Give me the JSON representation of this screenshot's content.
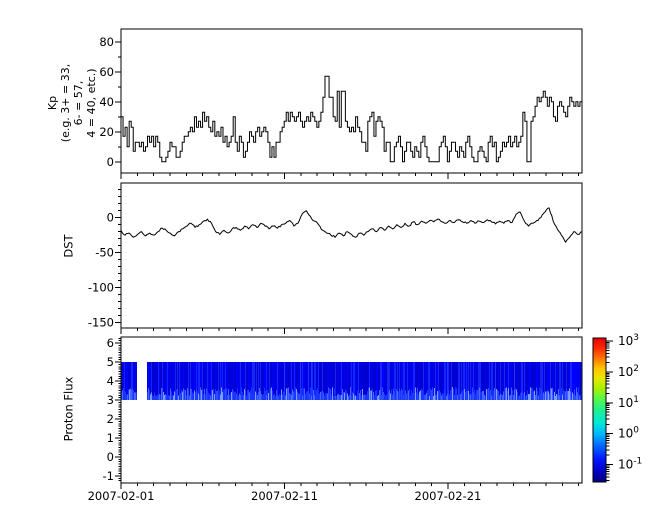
{
  "figure": {
    "background": "#ffffff",
    "frame_color": "#000000",
    "text_color": "#000000"
  },
  "x_axis": {
    "xlim_days": [
      0,
      28.2
    ],
    "start_date": "2007-02-01",
    "major_tick_days": [
      0,
      10,
      20
    ],
    "tick_labels": [
      "2007-02-01",
      "2007-02-11",
      "2007-02-21"
    ],
    "minor_tick_interval_days": 1
  },
  "chart_data": [
    {
      "type": "line",
      "mode": "steps",
      "name": "Kp",
      "ylabel_lines": [
        "Kp",
        "(e.g. 3+ = 33,",
        "6- = 57,",
        "4 = 40, etc.)"
      ],
      "yticks": [
        0,
        20,
        40,
        60,
        80
      ],
      "ytick_labels": [
        "0",
        "20",
        "40",
        "60",
        "80"
      ],
      "ylim": [
        -7.5,
        88.5
      ],
      "minor_tick_step": 10,
      "sample_hours": 3,
      "line_color": "#000000",
      "values": [
        30,
        17,
        23,
        10,
        27,
        23,
        7,
        13,
        13,
        10,
        13,
        7,
        10,
        17,
        13,
        17,
        10,
        17,
        13,
        3,
        0,
        0,
        3,
        7,
        13,
        10,
        10,
        3,
        3,
        7,
        13,
        17,
        17,
        20,
        23,
        20,
        30,
        23,
        27,
        23,
        33,
        27,
        30,
        23,
        20,
        27,
        17,
        20,
        17,
        23,
        13,
        17,
        10,
        13,
        17,
        30,
        13,
        7,
        17,
        13,
        3,
        7,
        13,
        20,
        17,
        13,
        20,
        23,
        17,
        20,
        23,
        20,
        13,
        3,
        10,
        3,
        13,
        13,
        20,
        23,
        27,
        33,
        27,
        33,
        30,
        27,
        30,
        33,
        27,
        23,
        27,
        30,
        27,
        33,
        30,
        27,
        23,
        27,
        33,
        43,
        57,
        57,
        43,
        43,
        30,
        27,
        47,
        23,
        47,
        47,
        27,
        23,
        20,
        23,
        20,
        30,
        23,
        20,
        13,
        13,
        7,
        27,
        30,
        33,
        17,
        27,
        30,
        27,
        23,
        7,
        13,
        13,
        0,
        0,
        10,
        13,
        17,
        10,
        0,
        7,
        13,
        13,
        7,
        3,
        10,
        7,
        3,
        13,
        17,
        10,
        3,
        0,
        0,
        0,
        0,
        0,
        10,
        13,
        17,
        10,
        0,
        7,
        13,
        13,
        7,
        3,
        10,
        7,
        3,
        13,
        17,
        10,
        3,
        0,
        0,
        7,
        10,
        7,
        3,
        0,
        13,
        17,
        10,
        13,
        0,
        3,
        7,
        13,
        10,
        13,
        17,
        10,
        13,
        17,
        10,
        13,
        17,
        33,
        27,
        0,
        0,
        27,
        30,
        37,
        43,
        40,
        43,
        47,
        43,
        37,
        43,
        40,
        30,
        27,
        37,
        40,
        37,
        33,
        30,
        37,
        43,
        40,
        37,
        40,
        37,
        40
      ]
    },
    {
      "type": "line",
      "mode": "linear",
      "name": "DST",
      "ylabel": "DST",
      "yticks": [
        0,
        -50,
        -100,
        -150
      ],
      "ytick_labels": [
        "0",
        "-50",
        "-100",
        "-150"
      ],
      "ylim": [
        -157.5,
        49.5
      ],
      "minor_tick_step": 10,
      "sample_hours": 6,
      "line_color": "#000000",
      "values": [
        -18,
        -25,
        -22,
        -28,
        -24,
        -20,
        -26,
        -22,
        -25,
        -20,
        -15,
        -18,
        -22,
        -26,
        -20,
        -16,
        -12,
        -8,
        -14,
        -10,
        -5,
        -2,
        -8,
        -20,
        -24,
        -18,
        -22,
        -16,
        -14,
        -18,
        -12,
        -16,
        -10,
        -14,
        -8,
        -12,
        -16,
        -12,
        -15,
        -10,
        -8,
        -4,
        -12,
        -8,
        5,
        10,
        2,
        -5,
        -10,
        -18,
        -22,
        -25,
        -28,
        -22,
        -26,
        -20,
        -24,
        -28,
        -22,
        -25,
        -20,
        -16,
        -20,
        -14,
        -18,
        -12,
        -16,
        -10,
        -14,
        -8,
        -12,
        -6,
        -10,
        -5,
        -8,
        -4,
        -6,
        -2,
        -6,
        -8,
        -4,
        -7,
        -3,
        -6,
        -8,
        -4,
        -8,
        -5,
        -7,
        -3,
        -6,
        -9,
        -5,
        -8,
        -4,
        -7,
        5,
        8,
        -5,
        -12,
        -8,
        -4,
        0,
        8,
        14,
        -5,
        -16,
        -25,
        -35,
        -28,
        -20,
        -24,
        -20
      ]
    },
    {
      "type": "heatmap",
      "name": "Proton Flux",
      "ylabel": "Proton Flux",
      "yticks": [
        -1,
        0,
        1,
        2,
        3,
        4,
        5,
        6
      ],
      "ytick_labels": [
        "-1",
        "0",
        "1",
        "2",
        "3",
        "4",
        "5",
        "6"
      ],
      "ylim": [
        -1.37,
        6.32
      ],
      "minor_tick_step": 0.125,
      "band": {
        "y_range": [
          3,
          5
        ],
        "segments_days": [
          [
            0,
            0.95
          ],
          [
            1.62,
            28.2
          ]
        ],
        "palette_upper": [
          "#0000d2",
          "#0000e8",
          "#0000ff",
          "#1228f5"
        ],
        "palette_lower": [
          "#1a35ff",
          "#2d4bff",
          "#4466ff",
          "#7a9bff"
        ],
        "streak_color": "#2743ff",
        "streak_probability": 0.1,
        "seed": 20070201
      },
      "colorbar": {
        "scale": "log10",
        "mantissa": "10",
        "tick_exponents": [
          3,
          2,
          1,
          0,
          -1
        ],
        "colormap": "jet",
        "gradient_stops": [
          [
            "0%",
            "#000084"
          ],
          [
            "8%",
            "#0000c8"
          ],
          [
            "16%",
            "#0018ff"
          ],
          [
            "26%",
            "#0070ff"
          ],
          [
            "33%",
            "#00b4ff"
          ],
          [
            "41%",
            "#00e8d8"
          ],
          [
            "50%",
            "#20f090"
          ],
          [
            "57%",
            "#50f850"
          ],
          [
            "65%",
            "#a8f000"
          ],
          [
            "72%",
            "#e8e800"
          ],
          [
            "79%",
            "#ffc400"
          ],
          [
            "86%",
            "#ff7400"
          ],
          [
            "93%",
            "#ff2800"
          ],
          [
            "100%",
            "#e60000"
          ]
        ]
      }
    }
  ]
}
